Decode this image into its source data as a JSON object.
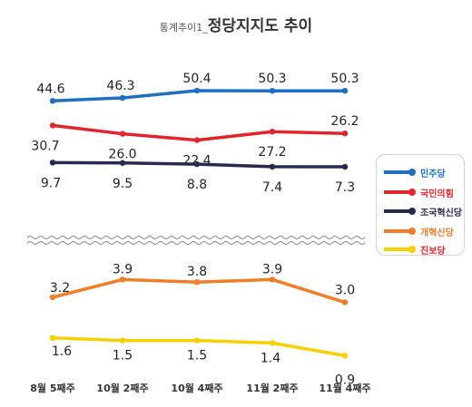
{
  "title": {
    "prefix": "통계추이1_",
    "main": "정당지지도 추이"
  },
  "chart_data": {
    "type": "line",
    "title": "정당지지도 추이",
    "categories": [
      "8월 5째주",
      "10월 2째주",
      "10월 4째주",
      "11월 2째주",
      "11월 4째주"
    ],
    "axis_break": true,
    "grid": false,
    "legend_position": "right",
    "series": [
      {
        "name": "민주당",
        "color": "#1f6fc1",
        "values": [
          44.6,
          46.3,
          50.4,
          50.3,
          50.3
        ],
        "labels": [
          "44.6",
          "46.3",
          "50.4",
          "50.3",
          "50.3"
        ]
      },
      {
        "name": "국민의힘",
        "color": "#e0262d",
        "values": [
          30.7,
          26.0,
          22.4,
          27.2,
          26.2
        ],
        "labels": [
          "30.7",
          "26.0",
          "22.4",
          "27.2",
          "26.2"
        ]
      },
      {
        "name": "조국혁신당",
        "color": "#272a4f",
        "values": [
          9.7,
          9.5,
          8.8,
          7.4,
          7.3
        ],
        "labels": [
          "9.7",
          "9.5",
          "8.8",
          "7.4",
          "7.3"
        ]
      },
      {
        "name": "개혁신당",
        "color": "#f07d2a",
        "values": [
          3.2,
          3.9,
          3.8,
          3.9,
          3.0
        ],
        "labels": [
          "3.2",
          "3.9",
          "3.8",
          "3.9",
          "3.0"
        ]
      },
      {
        "name": "진보당",
        "color": "#f7d000",
        "values": [
          1.6,
          1.5,
          1.5,
          1.4,
          0.9
        ],
        "labels": [
          "1.6",
          "1.5",
          "1.5",
          "1.4",
          "0.9"
        ]
      }
    ]
  }
}
